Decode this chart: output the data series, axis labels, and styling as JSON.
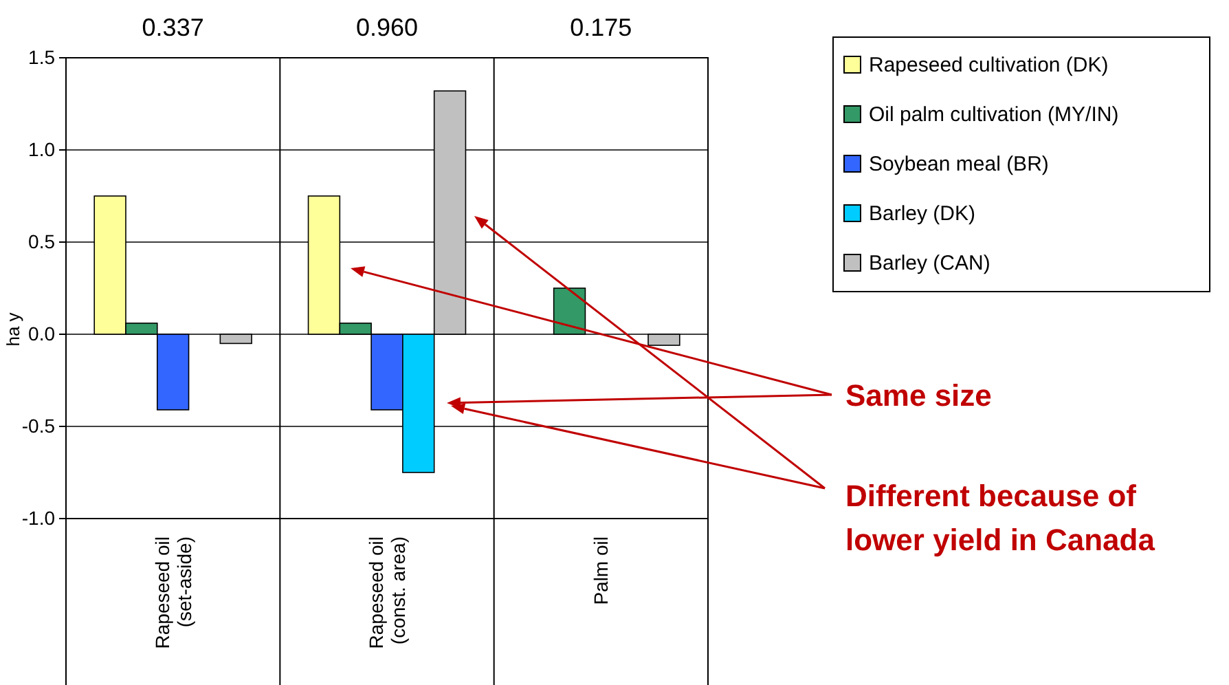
{
  "chart_data": {
    "type": "bar",
    "categories": [
      "Rapeseed oil (set-aside)",
      "Rapeseed oil (const. area)",
      "Palm oil"
    ],
    "series": [
      {
        "name": "Rapeseed cultivation (DK)",
        "color": "#ffff99",
        "values": [
          0.75,
          0.75,
          null
        ]
      },
      {
        "name": "Oil palm cultivation (MY/IN)",
        "color": "#339966",
        "values": [
          0.06,
          0.06,
          0.25
        ]
      },
      {
        "name": "Soybean meal (BR)",
        "color": "#3366ff",
        "values": [
          -0.41,
          -0.41,
          null
        ]
      },
      {
        "name": "Barley (DK)",
        "color": "#00ccff",
        "values": [
          null,
          -0.75,
          null
        ]
      },
      {
        "name": "Barley (CAN)",
        "color": "#c0c0c0",
        "values": [
          -0.05,
          1.32,
          -0.06
        ]
      }
    ],
    "ylabel": "ha y",
    "ylim": [
      -1.0,
      1.5
    ],
    "yticks": [
      {
        "value": -1,
        "label": "-1.0"
      },
      {
        "value": -0.5,
        "label": "-0.5"
      },
      {
        "value": 0,
        "label": "0.0"
      },
      {
        "value": 0.5,
        "label": "0.5"
      },
      {
        "value": 1,
        "label": "1.0"
      },
      {
        "value": 1.5,
        "label": "1.5"
      }
    ],
    "grid": "y",
    "legend": "right",
    "annotations": [
      "0.337",
      "0.960",
      "0.175",
      "Same size",
      "Different because of lower yield in Canada"
    ]
  }
}
